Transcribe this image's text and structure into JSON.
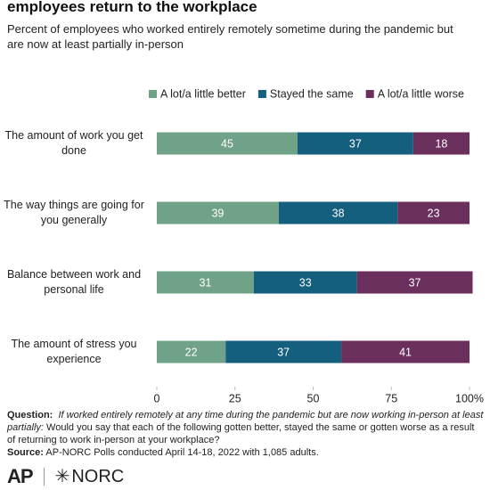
{
  "chart_data": {
    "type": "stacked_barh",
    "title": "employees return to the workplace",
    "subtitle": "Percent of employees who worked entirely remotely sometime during the pandemic but are now at least partially in-person",
    "categories": [
      "The amount of work you get done",
      "The way things are going for you generally",
      "Balance between work and personal life",
      "The amount of stress you experience"
    ],
    "series": [
      {
        "name": "A lot/a little better",
        "color": "#6fa287",
        "values": [
          45,
          39,
          31,
          22
        ]
      },
      {
        "name": "Stayed the same",
        "color": "#155f7e",
        "values": [
          37,
          38,
          33,
          37
        ]
      },
      {
        "name": "A lot/a little worse",
        "color": "#6b2f5e",
        "values": [
          18,
          23,
          37,
          41
        ]
      }
    ],
    "xlim": [
      0,
      100
    ],
    "xticks": [
      0,
      25,
      50,
      75,
      {
        "value": 100,
        "label": "100%"
      }
    ]
  },
  "footer": {
    "question_label": "Question:",
    "question_italic": "If worked entirely remotely at any time during the pandemic but are now working in-person at least partially:",
    "question_text": "Would you say that each of the following gotten better, stayed the same or gotten worse as a result of returning to work in-person at your workplace?",
    "source_label": "Source:",
    "source_text": "AP-NORC Polls conducted April 14-18, 2022 with 1,085 adults.",
    "logo_ap": "AP",
    "logo_norc": "NORC"
  }
}
